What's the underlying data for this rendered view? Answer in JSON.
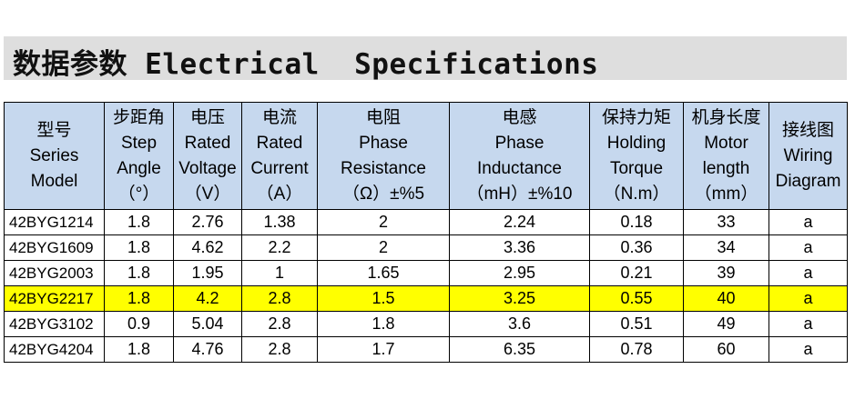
{
  "title": "数据参数 Electrical  Specifications",
  "headers": [
    [
      "型号",
      "Series",
      "Model"
    ],
    [
      "步距角",
      "Step",
      "Angle",
      "（°）"
    ],
    [
      "电压",
      "Rated",
      "Voltage",
      "（V）"
    ],
    [
      "电流",
      "Rated",
      "Current",
      "（A）"
    ],
    [
      "电阻",
      "Phase",
      "Resistance",
      "（Ω）±%5"
    ],
    [
      "电感",
      "Phase",
      "Inductance",
      "（mH）±%10"
    ],
    [
      "保持力矩",
      "Holding",
      "Torque",
      "（N.m）"
    ],
    [
      "机身长度",
      "Motor",
      "length",
      "（mm）"
    ],
    [
      "接线图",
      "Wiring",
      "Diagram"
    ]
  ],
  "rows": [
    [
      "42BYG1214",
      "1.8",
      "2.76",
      "1.38",
      "2",
      "2.24",
      "0.18",
      "33",
      "a"
    ],
    [
      "42BYG1609",
      "1.8",
      "4.62",
      "2.2",
      "2",
      "3.36",
      "0.36",
      "34",
      "a"
    ],
    [
      "42BYG2003",
      "1.8",
      "1.95",
      "1",
      "1.65",
      "2.95",
      "0.21",
      "39",
      "a"
    ],
    [
      "42BYG2217",
      "1.8",
      "4.2",
      "2.8",
      "1.5",
      "3.25",
      "0.55",
      "40",
      "a"
    ],
    [
      "42BYG3102",
      "0.9",
      "5.04",
      "2.8",
      "1.8",
      "3.6",
      "0.51",
      "49",
      "a"
    ],
    [
      "42BYG4204",
      "1.8",
      "4.76",
      "2.8",
      "1.7",
      "6.35",
      "0.78",
      "60",
      "a"
    ]
  ],
  "highlighted_row": 3,
  "colors": {
    "title_bar": "#dedede",
    "header_background": "#c6d8ee",
    "highlight": "#ffff00",
    "border": "#000000"
  }
}
